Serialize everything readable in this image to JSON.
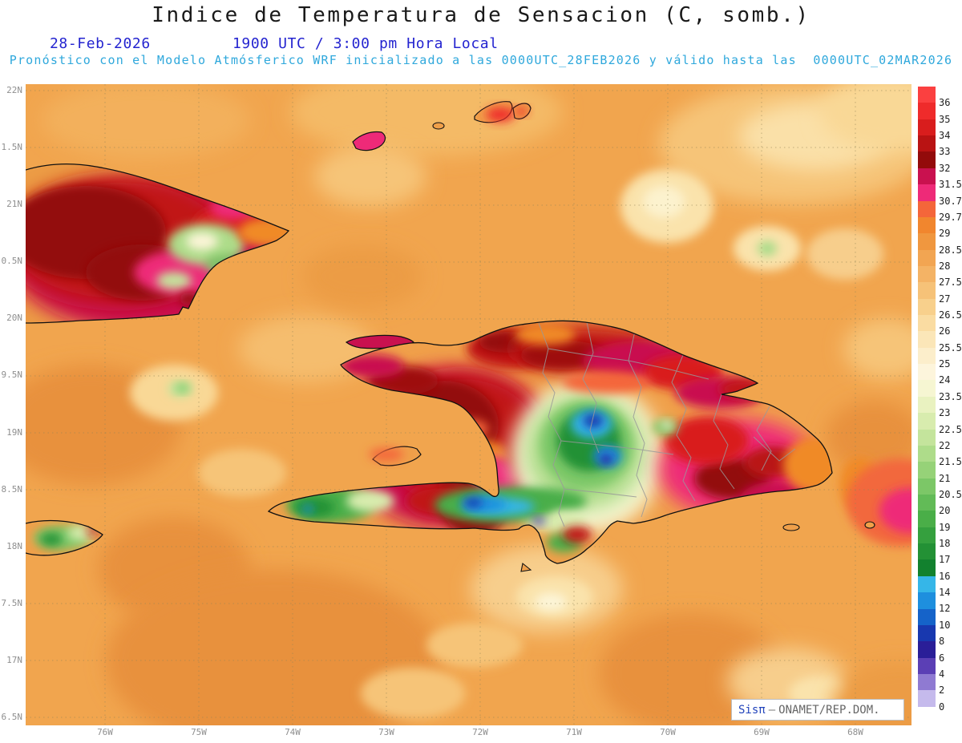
{
  "title": "Indice de Temperatura de Sensacion (C, somb.)",
  "header": {
    "date": "28-Feb-2026",
    "time": "1900 UTC / 3:00 pm Hora Local",
    "forecast_line": "Pronóstico con el Modelo Atmósferico WRF inicializado a las 0000UTC_28FEB2026 y válido hasta las  0000UTC_02MAR2026"
  },
  "axes": {
    "lat_labels": [
      "22N",
      "1.5N",
      "21N",
      "0.5N",
      "20N",
      "9.5N",
      "19N",
      "8.5N",
      "18N",
      "7.5N",
      "17N",
      "6.5N"
    ],
    "lon_labels": [
      "76W",
      "75W",
      "74W",
      "73W",
      "72W",
      "71W",
      "70W",
      "69W",
      "68W"
    ]
  },
  "legend": {
    "labels": [
      "36",
      "35",
      "34",
      "33",
      "32",
      "31.5",
      "30.7",
      "29.7",
      "29",
      "28.5",
      "28",
      "27.5",
      "27",
      "26.5",
      "26",
      "25.5",
      "25",
      "24",
      "23.5",
      "23",
      "22.5",
      "22",
      "21.5",
      "21",
      "20.5",
      "20",
      "19",
      "18",
      "17",
      "16",
      "14",
      "12",
      "10",
      "8",
      "6",
      "4",
      "2",
      "0"
    ],
    "colors": [
      "#FB4040",
      "#EF2B2B",
      "#D91D1D",
      "#B91313",
      "#930B0B",
      "#C9114F",
      "#EE2A78",
      "#F4663A",
      "#F1862E",
      "#F0973F",
      "#F2A552",
      "#F4B365",
      "#F6C278",
      "#F8D08C",
      "#FADCA2",
      "#FBE6B8",
      "#FCEECB",
      "#FDF5DC",
      "#F6F6D2",
      "#E9F2C0",
      "#D8ECAE",
      "#C4E49C",
      "#AEDC8A",
      "#96D278",
      "#7CC767",
      "#62BB57",
      "#4AAE48",
      "#35A03E",
      "#239135",
      "#12812E",
      "#35B6E8",
      "#1E8FDE",
      "#1563C9",
      "#1838AF",
      "#2A1E98",
      "#5B3FB5",
      "#8F7AD2",
      "#C5BAEC",
      "#FFFFFF"
    ]
  },
  "branding": {
    "name": "Sisπ",
    "separator": "—",
    "org": "ONAMET/REP.DOM."
  },
  "colors": {
    "header_blue": "#2424D0",
    "subtitle_cyan": "#2FA8DC",
    "ocean_base": "#F1A54E"
  }
}
